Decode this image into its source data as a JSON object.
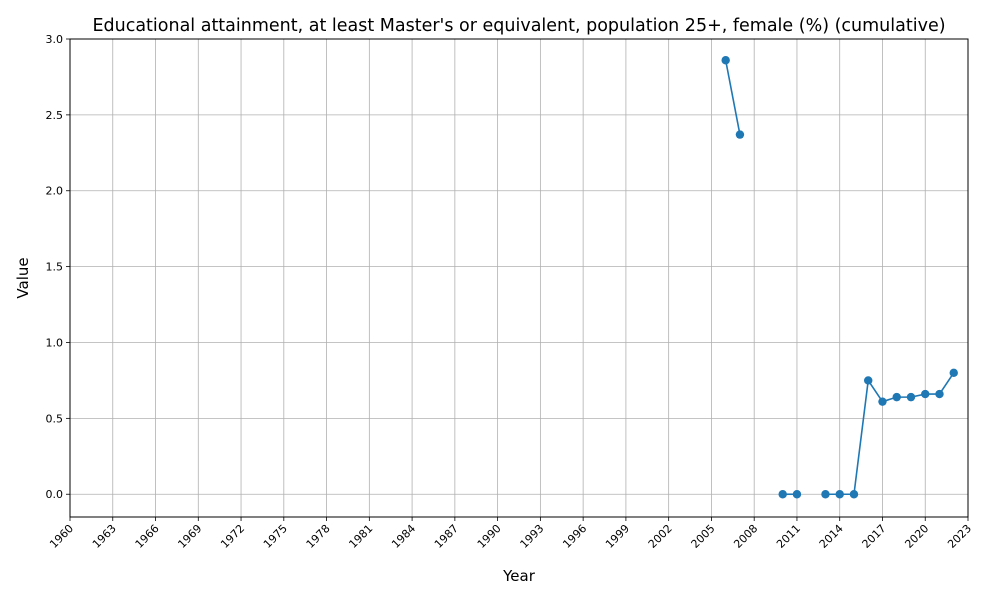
{
  "chart_data": {
    "type": "line",
    "title": "Educational attainment, at least Master's or equivalent, population 25+, female (%) (cumulative)",
    "xlabel": "Year",
    "ylabel": "Value",
    "xlim": [
      1960,
      2023
    ],
    "ylim": [
      -0.15,
      3.0
    ],
    "x_ticks": [
      "1960",
      "1963",
      "1966",
      "1969",
      "1972",
      "1975",
      "1978",
      "1981",
      "1984",
      "1987",
      "1990",
      "1993",
      "1996",
      "1999",
      "2002",
      "2005",
      "2008",
      "2011",
      "2014",
      "2017",
      "2020",
      "2023"
    ],
    "y_ticks": [
      "0.0",
      "0.5",
      "1.0",
      "1.5",
      "2.0",
      "2.5",
      "3.0"
    ],
    "grid": true,
    "series_color": "#1f77b4",
    "series": [
      {
        "points": [
          [
            2006,
            2.86
          ],
          [
            2007,
            2.37
          ],
          [
            null,
            null
          ],
          [
            2010,
            0.0
          ],
          [
            2011,
            0.0
          ],
          [
            null,
            null
          ],
          [
            2013,
            0.0
          ],
          [
            2014,
            0.0
          ],
          [
            2015,
            0.0
          ],
          [
            2016,
            0.75
          ],
          [
            2017,
            0.61
          ],
          [
            2018,
            0.64
          ],
          [
            2019,
            0.64
          ],
          [
            2020,
            0.66
          ],
          [
            2021,
            0.66
          ],
          [
            2022,
            0.8
          ]
        ]
      }
    ]
  }
}
